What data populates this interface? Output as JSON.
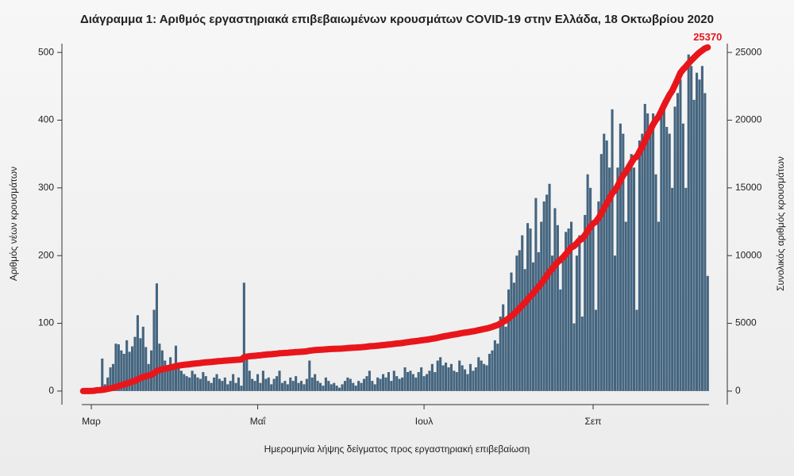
{
  "chart_data": {
    "type": "bar_line",
    "title": "Διάγραμμα 1: Αριθμός εργαστηριακά επιβεβαιωμένων κρουσμάτων COVID-19 στην Ελλάδα, 18 Οκτωβρίου 2020",
    "x_label": "Ημερομηνία λήψης δείγματος προς εργαστηριακή επιβεβαίωση",
    "y_label": "Αριθμός νέων κρουσμάτων",
    "y2_label": "Συνολικός αριθμός κρουσμάτων",
    "ylim": [
      -20,
      513
    ],
    "yticks": [
      0,
      100,
      200,
      300,
      400,
      500
    ],
    "y2lim": [
      -1000,
      25650
    ],
    "y2ticks": [
      0,
      5000,
      10000,
      15000,
      20000,
      25000
    ],
    "categories": [
      null,
      null,
      null,
      "Μαρ",
      null,
      null,
      null,
      null,
      null,
      null,
      null,
      null,
      null,
      null,
      null,
      null,
      null,
      null,
      null,
      null,
      null,
      null,
      null,
      null,
      null,
      null,
      null,
      null,
      null,
      null,
      null,
      null,
      null,
      null,
      null,
      null,
      null,
      null,
      null,
      null,
      null,
      null,
      null,
      null,
      null,
      null,
      null,
      null,
      null,
      null,
      null,
      null,
      null,
      null,
      null,
      null,
      null,
      null,
      null,
      null,
      null,
      null,
      null,
      null,
      "Μαΐ",
      null,
      null,
      null,
      null,
      null,
      null,
      null,
      null,
      null,
      null,
      null,
      null,
      null,
      null,
      null,
      null,
      null,
      null,
      null,
      null,
      null,
      null,
      null,
      null,
      null,
      null,
      null,
      null,
      null,
      null,
      null,
      null,
      null,
      null,
      null,
      null,
      null,
      null,
      null,
      null,
      null,
      null,
      null,
      null,
      null,
      null,
      null,
      null,
      null,
      null,
      null,
      null,
      null,
      null,
      null,
      null,
      null,
      null,
      null,
      null,
      "Ιουλ",
      null,
      null,
      null,
      null,
      null,
      null,
      null,
      null,
      null,
      null,
      null,
      null,
      null,
      null,
      null,
      null,
      null,
      null,
      null,
      null,
      null,
      null,
      null,
      null,
      null,
      null,
      null,
      null,
      null,
      null,
      null,
      null,
      null,
      null,
      null,
      null,
      null,
      null,
      null,
      null,
      null,
      null,
      null,
      null,
      null,
      null,
      null,
      null,
      null,
      null,
      null,
      null,
      null,
      null,
      null,
      null,
      null,
      null,
      null,
      null,
      null,
      "Σεπ",
      null,
      null,
      null,
      null,
      null,
      null,
      null,
      null,
      null,
      null,
      null,
      null,
      null,
      null,
      null,
      null,
      null,
      null,
      null,
      null,
      null,
      null,
      null,
      null,
      null,
      null,
      null,
      null,
      null,
      null,
      null,
      null,
      null,
      null,
      null,
      null,
      null,
      null,
      null,
      null,
      null,
      null
    ],
    "series": [
      {
        "name": "Αριθμός νέων κρουσμάτων",
        "color": "#45657f",
        "values": [
          2,
          1,
          3,
          0,
          2,
          3,
          4,
          48,
          10,
          20,
          35,
          40,
          70,
          69,
          60,
          55,
          75,
          58,
          66,
          80,
          112,
          78,
          95,
          65,
          40,
          60,
          120,
          159,
          70,
          60,
          45,
          35,
          50,
          40,
          67,
          38,
          30,
          25,
          22,
          20,
          30,
          25,
          20,
          18,
          28,
          22,
          15,
          12,
          20,
          25,
          18,
          15,
          20,
          10,
          15,
          25,
          12,
          20,
          8,
          160,
          50,
          30,
          18,
          15,
          25,
          12,
          30,
          18,
          20,
          10,
          18,
          22,
          30,
          12,
          15,
          10,
          20,
          15,
          22,
          12,
          15,
          10,
          18,
          45,
          20,
          25,
          15,
          12,
          8,
          20,
          15,
          10,
          12,
          8,
          5,
          10,
          15,
          20,
          18,
          12,
          8,
          15,
          12,
          18,
          22,
          30,
          15,
          10,
          20,
          18,
          25,
          20,
          28,
          15,
          30,
          22,
          18,
          20,
          35,
          28,
          30,
          25,
          20,
          28,
          35,
          22,
          25,
          30,
          40,
          28,
          45,
          50,
          38,
          42,
          35,
          40,
          30,
          28,
          45,
          38,
          32,
          25,
          40,
          30,
          35,
          50,
          45,
          40,
          38,
          55,
          60,
          75,
          70,
          110,
          128,
          95,
          150,
          175,
          160,
          200,
          208,
          230,
          180,
          248,
          240,
          190,
          285,
          205,
          250,
          280,
          290,
          306,
          200,
          270,
          245,
          150,
          200,
          235,
          240,
          250,
          100,
          200,
          230,
          110,
          260,
          320,
          300,
          250,
          120,
          280,
          350,
          380,
          370,
          330,
          416,
          200,
          330,
          395,
          380,
          250,
          330,
          350,
          330,
          120,
          370,
          380,
          424,
          410,
          390,
          410,
          320,
          250,
          410,
          430,
          390,
          380,
          300,
          420,
          440,
          460,
          395,
          300,
          497,
          480,
          430,
          470,
          460,
          480,
          440,
          170
        ]
      },
      {
        "name": "Συνολικός αριθμός κρουσμάτων",
        "color": "#e8161b",
        "axis": "y2",
        "values": [
          0,
          2,
          5,
          10,
          20,
          60,
          70,
          90,
          120,
          160,
          200,
          240,
          300,
          370,
          430,
          490,
          560,
          620,
          690,
          760,
          870,
          950,
          1040,
          1100,
          1140,
          1200,
          1320,
          1480,
          1550,
          1600,
          1650,
          1690,
          1740,
          1780,
          1840,
          1880,
          1910,
          1940,
          1960,
          1980,
          2010,
          2030,
          2050,
          2070,
          2100,
          2120,
          2135,
          2150,
          2170,
          2190,
          2210,
          2225,
          2245,
          2255,
          2270,
          2290,
          2300,
          2320,
          2330,
          2490,
          2540,
          2570,
          2590,
          2600,
          2630,
          2640,
          2670,
          2690,
          2710,
          2720,
          2740,
          2760,
          2790,
          2800,
          2815,
          2825,
          2845,
          2860,
          2880,
          2890,
          2905,
          2915,
          2935,
          2980,
          3000,
          3025,
          3040,
          3050,
          3060,
          3080,
          3095,
          3105,
          3115,
          3125,
          3130,
          3140,
          3155,
          3175,
          3190,
          3200,
          3210,
          3225,
          3235,
          3255,
          3275,
          3305,
          3320,
          3330,
          3350,
          3370,
          3395,
          3415,
          3440,
          3455,
          3485,
          3510,
          3525,
          3545,
          3580,
          3610,
          3640,
          3665,
          3685,
          3710,
          3745,
          3770,
          3795,
          3825,
          3865,
          3890,
          3935,
          3985,
          4025,
          4065,
          4100,
          4140,
          4170,
          4200,
          4245,
          4285,
          4315,
          4340,
          4380,
          4410,
          4445,
          4495,
          4540,
          4580,
          4620,
          4675,
          4735,
          4810,
          4880,
          4990,
          5120,
          5215,
          5365,
          5540,
          5700,
          5900,
          6110,
          6340,
          6520,
          6770,
          7010,
          7200,
          7485,
          7690,
          7940,
          8220,
          8510,
          8815,
          9015,
          9285,
          9530,
          9680,
          9880,
          10115,
          10355,
          10605,
          10705,
          10905,
          11135,
          11245,
          11505,
          11825,
          12125,
          12375,
          12495,
          12775,
          13125,
          13505,
          13875,
          14205,
          14620,
          14820,
          15150,
          15545,
          15925,
          16175,
          16505,
          16855,
          17185,
          17305,
          17675,
          18055,
          18480,
          18890,
          19280,
          19690,
          20010,
          20260,
          20670,
          21100,
          21490,
          21870,
          22170,
          22590,
          23030,
          23490,
          23750,
          23950,
          24200,
          24420,
          24620,
          24820,
          25000,
          25150,
          25300,
          25370
        ],
        "value_labels": {
          "229": "25370"
        }
      }
    ]
  }
}
